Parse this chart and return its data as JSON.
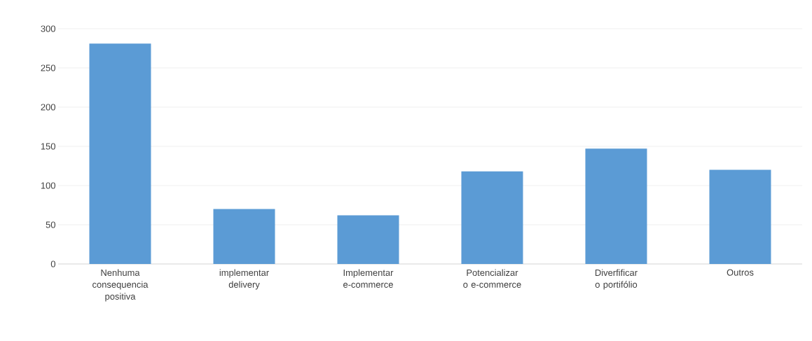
{
  "chart_data": {
    "type": "bar",
    "categories": [
      "Nenhuma consequencia positiva",
      "implementar delivery",
      "Implementar e-commerce",
      "Potencializar o e-commerce",
      "Diverfificar o portifólio",
      "Outros"
    ],
    "values": [
      281,
      70,
      62,
      118,
      147,
      120
    ],
    "color": "#5b9bd5",
    "ylim": [
      0,
      300
    ],
    "yticks": [
      0,
      50,
      100,
      150,
      200,
      250,
      300
    ],
    "grid": "y"
  }
}
